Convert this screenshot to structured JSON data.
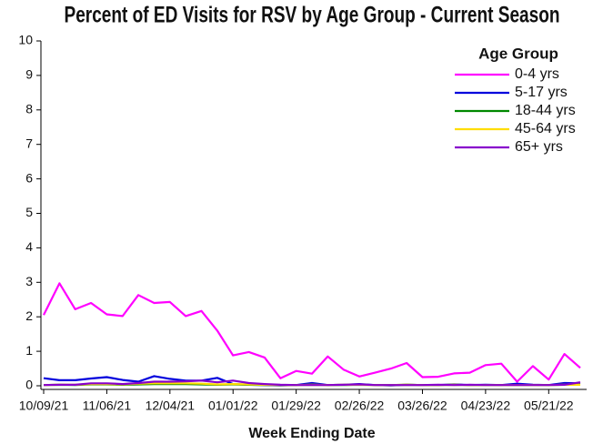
{
  "chart_data": {
    "type": "line",
    "title": "Percent of ED Visits for RSV by Age Group - Current Season",
    "x_label": "Week Ending Date",
    "legend_title": "Age Group",
    "legend": "top-right",
    "categories": [
      "10/09/21",
      null,
      null,
      null,
      "11/06/21",
      null,
      null,
      null,
      "12/04/21",
      null,
      null,
      null,
      "01/01/22",
      null,
      null,
      null,
      "01/29/22",
      null,
      null,
      null,
      "02/26/22",
      null,
      null,
      null,
      "03/26/22",
      null,
      null,
      null,
      "04/23/22",
      null,
      null,
      null,
      "05/21/22",
      null,
      null
    ],
    "ylim": [
      0,
      10
    ],
    "yticks": [
      0,
      1,
      2,
      3,
      4,
      5,
      6,
      7,
      8,
      9,
      10
    ],
    "series": [
      {
        "name": "0-4 yrs",
        "color": "#ff00ff",
        "values": [
          2.05,
          2.97,
          2.22,
          2.4,
          2.07,
          2.02,
          2.63,
          2.4,
          2.43,
          2.02,
          2.17,
          1.6,
          0.88,
          0.98,
          0.82,
          0.22,
          0.43,
          0.35,
          0.85,
          0.47,
          0.27,
          0.38,
          0.5,
          0.66,
          0.25,
          0.26,
          0.36,
          0.38,
          0.6,
          0.64,
          0.12,
          0.57,
          0.18,
          0.92,
          0.52
        ]
      },
      {
        "name": "5-17 yrs",
        "color": "#0000dd",
        "values": [
          0.22,
          0.16,
          0.16,
          0.21,
          0.25,
          0.17,
          0.12,
          0.28,
          0.2,
          0.15,
          0.15,
          0.23,
          0.05,
          0.03,
          0.02,
          0.01,
          0.02,
          0.08,
          0.02,
          0.03,
          0.05,
          0.02,
          0.01,
          0.03,
          0.02,
          0.02,
          0.04,
          0.02,
          0.03,
          0.02,
          0.06,
          0.03,
          0.02,
          0.08,
          0.07
        ]
      },
      {
        "name": "18-44 yrs",
        "color": "#008800",
        "values": [
          0.02,
          0.03,
          0.02,
          0.04,
          0.04,
          0.03,
          0.04,
          0.05,
          0.05,
          0.05,
          0.04,
          0.03,
          0.04,
          0.03,
          0.02,
          0.02,
          0.02,
          0.03,
          0.02,
          0.02,
          0.03,
          0.02,
          0.02,
          0.03,
          0.02,
          0.02,
          0.03,
          0.02,
          0.02,
          0.02,
          0.02,
          0.02,
          0.02,
          0.03,
          0.04
        ]
      },
      {
        "name": "45-64 yrs",
        "color": "#ffdd00",
        "values": [
          0.02,
          0.03,
          0.03,
          0.05,
          0.05,
          0.04,
          0.06,
          0.07,
          0.07,
          0.07,
          0.06,
          0.04,
          0.05,
          0.04,
          0.03,
          0.02,
          0.02,
          0.03,
          0.02,
          0.03,
          0.03,
          0.02,
          0.02,
          0.03,
          0.02,
          0.02,
          0.03,
          0.02,
          0.02,
          0.02,
          0.02,
          0.02,
          0.02,
          0.03,
          0.03
        ]
      },
      {
        "name": "65+ yrs",
        "color": "#8800cc",
        "values": [
          0.02,
          0.03,
          0.03,
          0.07,
          0.07,
          0.05,
          0.08,
          0.12,
          0.12,
          0.13,
          0.15,
          0.1,
          0.15,
          0.08,
          0.05,
          0.03,
          0.02,
          0.02,
          0.02,
          0.03,
          0.04,
          0.02,
          0.02,
          0.02,
          0.02,
          0.03,
          0.02,
          0.03,
          0.02,
          0.02,
          0.02,
          0.02,
          0.02,
          0.03,
          0.1
        ]
      }
    ]
  }
}
